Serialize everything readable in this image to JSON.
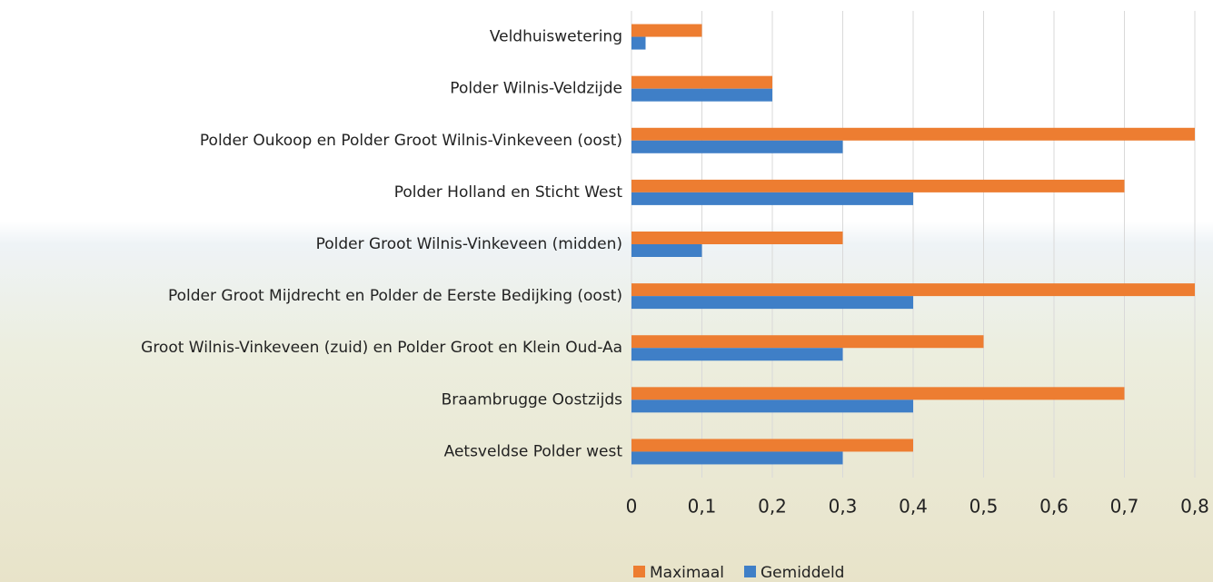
{
  "chart_data": {
    "type": "bar",
    "orientation": "horizontal",
    "categories": [
      "Veldhuiswetering",
      "Polder Wilnis-Veldzijde",
      "Polder Oukoop en Polder Groot Wilnis-Vinkeveen (oost)",
      "Polder Holland en Sticht West",
      "Polder Groot Wilnis-Vinkeveen (midden)",
      "Polder Groot Mijdrecht en Polder de Eerste Bedijking (oost)",
      "Groot Wilnis-Vinkeveen (zuid) en Polder Groot en Klein Oud-Aa",
      "Braambrugge Oostzijds",
      "Aetsveldse Polder west"
    ],
    "series": [
      {
        "name": "Maximaal",
        "color": "#ed7d31",
        "values": [
          0.1,
          0.2,
          0.8,
          0.7,
          0.3,
          0.8,
          0.5,
          0.7,
          0.4
        ]
      },
      {
        "name": "Gemiddeld",
        "color": "#3f7fc7",
        "values": [
          0.02,
          0.2,
          0.3,
          0.4,
          0.1,
          0.4,
          0.3,
          0.4,
          0.3
        ]
      }
    ],
    "xlim": [
      0,
      0.8
    ],
    "xticks": [
      0,
      {
        "value": 0.1,
        "label": "0,1"
      },
      {
        "value": 0.2,
        "label": "0,2"
      },
      {
        "value": 0.3,
        "label": "0,3"
      },
      {
        "value": 0.4,
        "label": "0,4"
      },
      {
        "value": 0.5,
        "label": "0,5"
      },
      {
        "value": 0.6,
        "label": "0,6"
      },
      {
        "value": 0.7,
        "label": "0,7"
      },
      {
        "value": 0.8,
        "label": "0,8"
      }
    ],
    "grid": true,
    "legend": "bottom"
  }
}
